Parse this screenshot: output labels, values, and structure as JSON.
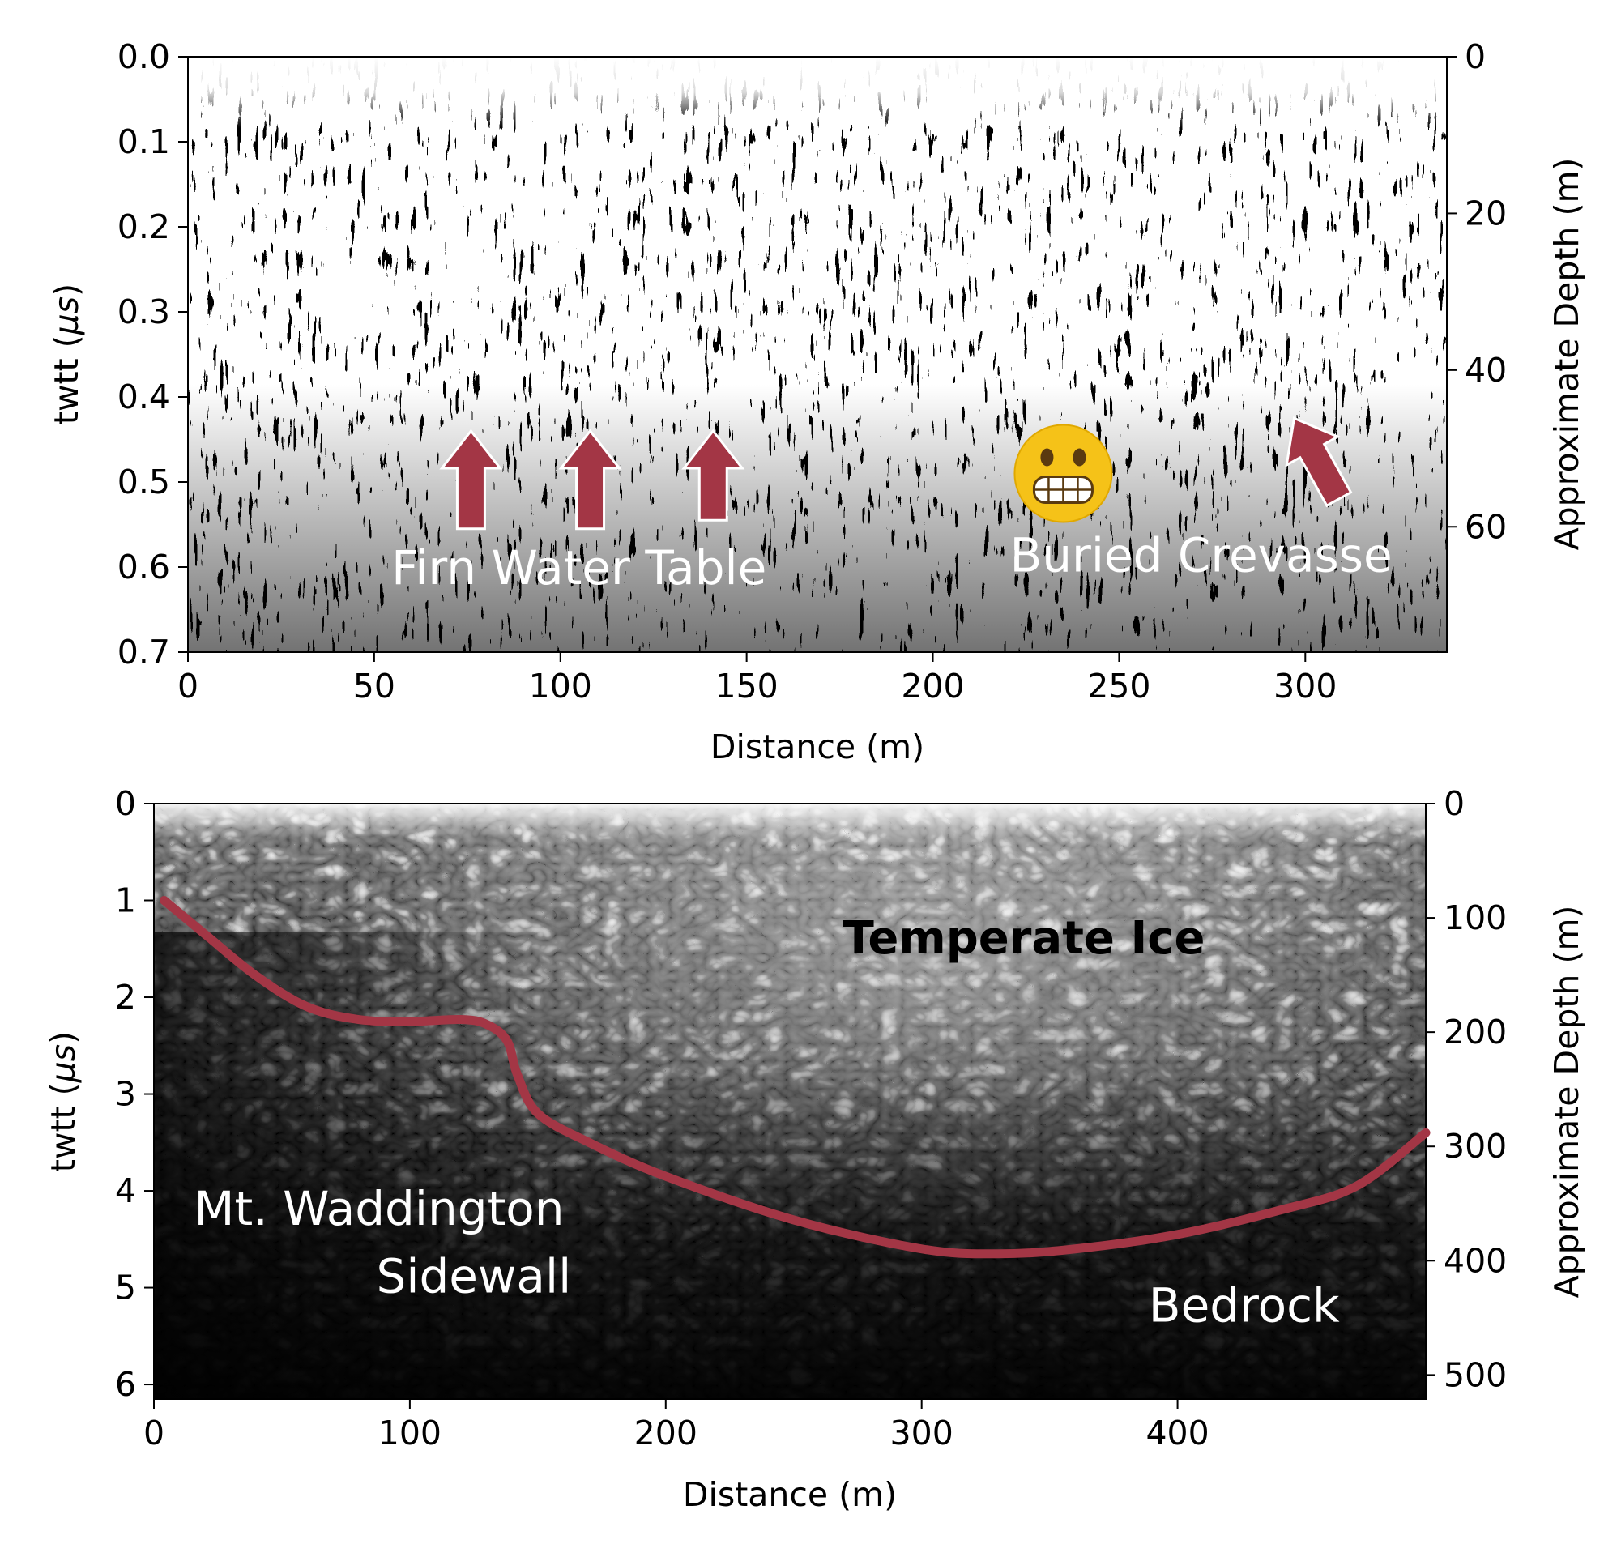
{
  "colors": {
    "interface_line": "#a33645",
    "arrow_fill": "#a33645",
    "arrow_outline": "#ffffff",
    "label_light": "#ffffff",
    "label_dark": "#000000"
  },
  "icons": {
    "emoji": "grimacing-face-icon"
  },
  "chart_data": [
    {
      "type": "heatmap",
      "description_of_panel": "",
      "xlabel": "Distance (m)",
      "ylabel": "twtt (μs)",
      "ylabel_right": "Approximate Depth (m)",
      "xlim": [
        0,
        338
      ],
      "ylim": [
        0.7,
        0.0
      ],
      "xticks": [
        0,
        50,
        100,
        150,
        200,
        250,
        300
      ],
      "yticks": [
        0.0,
        0.1,
        0.2,
        0.3,
        0.4,
        0.5,
        0.6,
        0.7
      ],
      "ytick_labels": [
        "0.0",
        "0.1",
        "0.2",
        "0.3",
        "0.4",
        "0.5",
        "0.6",
        "0.7"
      ],
      "right_ylim": [
        76,
        0
      ],
      "right_yticks": [
        0,
        20,
        40,
        60
      ],
      "annotations": [
        {
          "text": "Firn Water Table",
          "x": 105,
          "y": 0.62
        },
        {
          "text": "Buried Crevasse",
          "x": 272,
          "y": 0.605
        }
      ],
      "arrows": [
        {
          "target": "firn-water-table",
          "x": 76,
          "y_tip": 0.44,
          "y_tail": 0.555
        },
        {
          "target": "firn-water-table",
          "x": 108,
          "y_tip": 0.44,
          "y_tail": 0.555
        },
        {
          "target": "firn-water-table",
          "x": 141,
          "y_tip": 0.44,
          "y_tail": 0.545
        },
        {
          "target": "buried-crevasse",
          "x_tip": 297,
          "y_tip": 0.425,
          "x_tail": 309,
          "y_tail": 0.52
        }
      ],
      "emoji_position": {
        "x": 235,
        "y": 0.49
      }
    },
    {
      "type": "heatmap",
      "xlabel": "Distance (m)",
      "ylabel": "twtt (μs)",
      "ylabel_right": "Approximate Depth (m)",
      "xlim": [
        0,
        497
      ],
      "ylim": [
        6.15,
        0
      ],
      "xticks": [
        0,
        100,
        200,
        300,
        400
      ],
      "yticks": [
        0,
        1,
        2,
        3,
        4,
        5,
        6
      ],
      "right_ylim": [
        521,
        0
      ],
      "right_yticks": [
        0,
        100,
        200,
        300,
        400,
        500
      ],
      "annotations": [
        {
          "text": "Temperate Ice",
          "x": 340,
          "y": 1.55,
          "style": "bold-dark"
        },
        {
          "text": "Mt. Waddington",
          "x": 88,
          "y": 4.35
        },
        {
          "text": "Sidewall",
          "x": 125,
          "y": 5.05
        },
        {
          "text": "Bedrock",
          "x": 426,
          "y": 5.35
        }
      ],
      "bed_pick": {
        "name": "",
        "x": [
          4,
          20,
          40,
          60,
          80,
          100,
          120,
          130,
          138,
          142,
          150,
          170,
          200,
          250,
          300,
          330,
          360,
          400,
          440,
          470,
          497
        ],
        "y": [
          1.0,
          1.35,
          1.78,
          2.1,
          2.23,
          2.25,
          2.23,
          2.28,
          2.45,
          2.8,
          3.2,
          3.5,
          3.85,
          4.3,
          4.6,
          4.65,
          4.6,
          4.45,
          4.2,
          3.95,
          3.4
        ]
      }
    }
  ],
  "panel_top": {
    "xlabel": "Distance (m)",
    "ylabel_main": "twtt (",
    "ylabel_mu": "μs",
    "ylabel_close": ")",
    "ylabel_right": "Approximate Depth (m)",
    "xtick_labels": [
      "0",
      "50",
      "100",
      "150",
      "200",
      "250",
      "300"
    ],
    "ytick_labels": [
      "0.0",
      "0.1",
      "0.2",
      "0.3",
      "0.4",
      "0.5",
      "0.6",
      "0.7"
    ],
    "right_tick_labels": [
      "0",
      "20",
      "40",
      "60"
    ],
    "annotation_firn": "Firn Water Table",
    "annotation_crevasse": "Buried Crevasse"
  },
  "panel_bottom": {
    "xlabel": "Distance (m)",
    "ylabel_main": "twtt (",
    "ylabel_mu": "μs",
    "ylabel_close": ")",
    "ylabel_right": "Approximate Depth (m)",
    "xtick_labels": [
      "0",
      "100",
      "200",
      "300",
      "400"
    ],
    "ytick_labels": [
      "0",
      "1",
      "2",
      "3",
      "4",
      "5",
      "6"
    ],
    "right_tick_labels": [
      "0",
      "100",
      "200",
      "300",
      "400",
      "500"
    ],
    "annotation_ice": "Temperate Ice",
    "annotation_sidewall_1": "Mt. Waddington",
    "annotation_sidewall_2": "Sidewall",
    "annotation_bedrock": "Bedrock"
  }
}
